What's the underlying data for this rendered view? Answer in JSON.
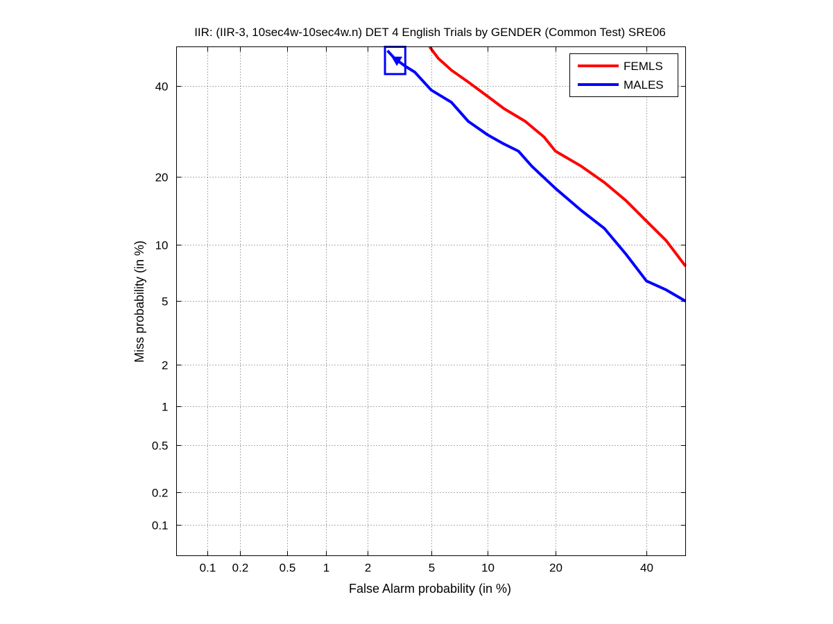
{
  "chart_data": {
    "type": "line",
    "title": "IIR: (IIR-3, 10sec4w-10sec4w.n) DET 4 English Trials by GENDER (Common Test) SRE06",
    "xlabel": "False Alarm probability (in %)",
    "ylabel": "Miss probability (in %)",
    "xscale": "normal-deviate",
    "yscale": "normal-deviate",
    "xlim": [
      0.05,
      50
    ],
    "ylim": [
      0.05,
      50
    ],
    "xticks": [
      0.1,
      0.2,
      0.5,
      1,
      2,
      5,
      10,
      20,
      40
    ],
    "xtick_labels": [
      "0.1",
      "0.2",
      "0.5",
      "1",
      "2",
      "5",
      "10",
      "20",
      "40"
    ],
    "yticks": [
      0.1,
      0.2,
      0.5,
      1,
      2,
      5,
      10,
      20,
      40
    ],
    "ytick_labels": [
      "0.1",
      "0.2",
      "0.5",
      "1",
      "2",
      "5",
      "10",
      "20",
      "40"
    ],
    "grid": "on",
    "legend_position": "top-right",
    "series": [
      {
        "name": "FEMLS",
        "color": "#ff0000",
        "points": [
          [
            4.9,
            50
          ],
          [
            5.5,
            47
          ],
          [
            6.5,
            44
          ],
          [
            8,
            41
          ],
          [
            10,
            37.5
          ],
          [
            12,
            34.5
          ],
          [
            15,
            31.5
          ],
          [
            18,
            28
          ],
          [
            20,
            25
          ],
          [
            25,
            22
          ],
          [
            30,
            19
          ],
          [
            35,
            16
          ],
          [
            40,
            13
          ],
          [
            45,
            10.5
          ],
          [
            50,
            7.8
          ]
        ]
      },
      {
        "name": "MALES",
        "color": "#0000ff",
        "points": [
          [
            2.7,
            49
          ],
          [
            3,
            47
          ],
          [
            3.5,
            45
          ],
          [
            4,
            43.5
          ],
          [
            5,
            39
          ],
          [
            6.5,
            36
          ],
          [
            8,
            31.5
          ],
          [
            10,
            28.5
          ],
          [
            12,
            26.5
          ],
          [
            14,
            25
          ],
          [
            16,
            22
          ],
          [
            20,
            18
          ],
          [
            25,
            14.5
          ],
          [
            30,
            12
          ],
          [
            35,
            9
          ],
          [
            40,
            6.5
          ],
          [
            45,
            5.8
          ],
          [
            50,
            5
          ]
        ]
      }
    ],
    "markers": [
      {
        "series": "MALES",
        "shape": "triangle-down",
        "x": 3.1,
        "y": 46.5
      },
      {
        "series": "MALES",
        "shape": "box",
        "x_range": [
          2.6,
          3.5
        ],
        "y_range": [
          43,
          50
        ]
      }
    ]
  }
}
